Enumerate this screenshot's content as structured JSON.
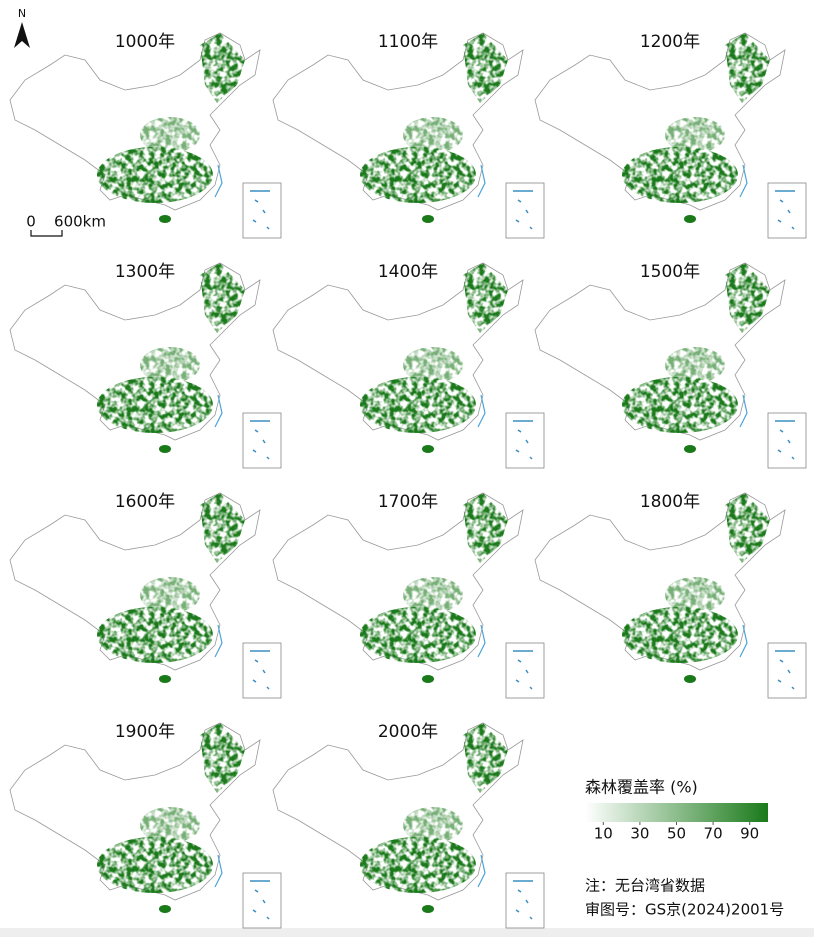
{
  "north": "N",
  "scale": {
    "start": "0",
    "end": "600km"
  },
  "maps": [
    "1000年",
    "1100年",
    "1200年",
    "1300年",
    "1400年",
    "1500年",
    "1600年",
    "1700年",
    "1800年",
    "1900年",
    "2000年"
  ],
  "legend": {
    "title": "森林覆盖率 (%)",
    "ticks": [
      10,
      30,
      50,
      70,
      90
    ],
    "lim": [
      0,
      100
    ],
    "colors": [
      "#ffffff",
      "#1a7a1a"
    ]
  },
  "notes": [
    "注：无台湾省数据",
    "审图号：GS京(2024)2001号"
  ]
}
